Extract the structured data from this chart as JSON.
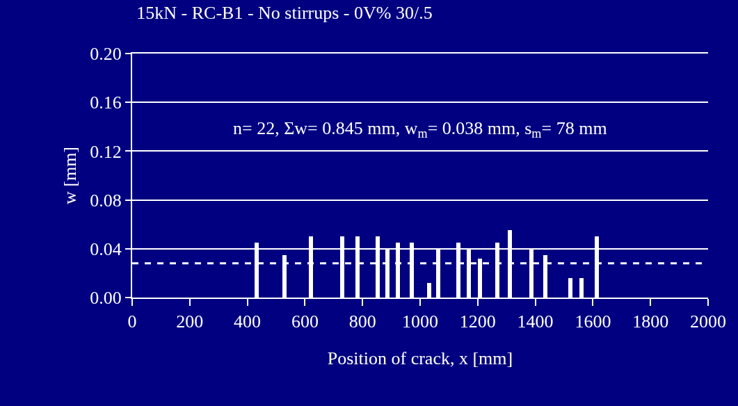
{
  "chart_data": {
    "type": "bar",
    "title": "15kN - RC-B1 - No stirrups - 0V% 30/.5",
    "xlabel": "Position of crack, x [mm]",
    "ylabel": "w [mm]",
    "annotations": [
      "n= 22, Σw= 0.845 mm, w$_{m}$= 0.038 mm, s$_{m}$= 78 mm"
    ],
    "x": [
      432,
      529,
      621,
      729,
      783,
      853,
      886,
      923,
      971,
      1031,
      1063,
      1133,
      1169,
      1208,
      1268,
      1312,
      1386,
      1435,
      1522,
      1560,
      1614
    ],
    "values": [
      0.045,
      0.035,
      0.05,
      0.05,
      0.05,
      0.05,
      0.04,
      0.045,
      0.045,
      0.012,
      0.04,
      0.045,
      0.04,
      0.032,
      0.045,
      0.055,
      0.04,
      0.035,
      0.016,
      0.016,
      0.05
    ],
    "color": "#ffffff",
    "xlim": [
      0,
      2000
    ],
    "xticks": [
      0,
      200,
      400,
      600,
      800,
      1000,
      1200,
      1400,
      1600,
      1800,
      2000
    ],
    "ylim": [
      0,
      0.2
    ],
    "yticks": [
      {
        "value": 0,
        "label": "0.00"
      },
      {
        "value": 0.04,
        "label": "0.04"
      },
      {
        "value": 0.08,
        "label": "0.08"
      },
      {
        "value": 0.12,
        "label": "0.12"
      },
      {
        "value": 0.16,
        "label": "0.16"
      },
      {
        "value": 0.2,
        "label": "0.20"
      }
    ],
    "ref_lines": [
      {
        "axis": "y",
        "value": 0.028,
        "color": "#ffffff",
        "line_style": "dashed"
      }
    ],
    "grid": "y"
  }
}
